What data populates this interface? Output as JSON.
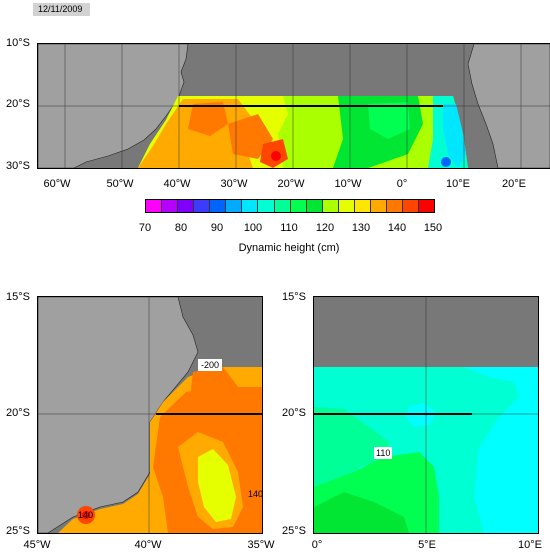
{
  "date": "12/11/2009",
  "top_map": {
    "y_labels": [
      "10°S",
      "20°S",
      "30°S"
    ],
    "x_labels": [
      "60°W",
      "50°W",
      "40°W",
      "30°W",
      "20°W",
      "10°W",
      "0°",
      "10°E",
      "20°E"
    ]
  },
  "colorbar": {
    "ticks": [
      "70",
      "80",
      "90",
      "100",
      "110",
      "120",
      "130",
      "140",
      "150"
    ],
    "title": "Dynamic height (cm)",
    "colors": [
      "#ff00ff",
      "#b400ff",
      "#7f00ff",
      "#3c3cff",
      "#0064ff",
      "#00aaff",
      "#00e6ff",
      "#00ffd2",
      "#00ff96",
      "#00ff50",
      "#00e632",
      "#aaff00",
      "#e6ff00",
      "#ffe600",
      "#ffaa00",
      "#ff7800",
      "#ff4600",
      "#ff0000"
    ]
  },
  "left_map": {
    "y_labels": [
      "15°S",
      "20°S",
      "25°S"
    ],
    "x_labels": [
      "45°W",
      "40°W",
      "35°W"
    ],
    "contour_labels": [
      "-200",
      "140",
      "140"
    ]
  },
  "right_map": {
    "y_labels": [
      "15°S",
      "20°S",
      "25°S"
    ],
    "x_labels": [
      "0°",
      "5°E",
      "10°E"
    ],
    "contour_labels": [
      "110"
    ]
  },
  "colors": {
    "land": "#a0a0a0",
    "nodata": "#787878"
  }
}
